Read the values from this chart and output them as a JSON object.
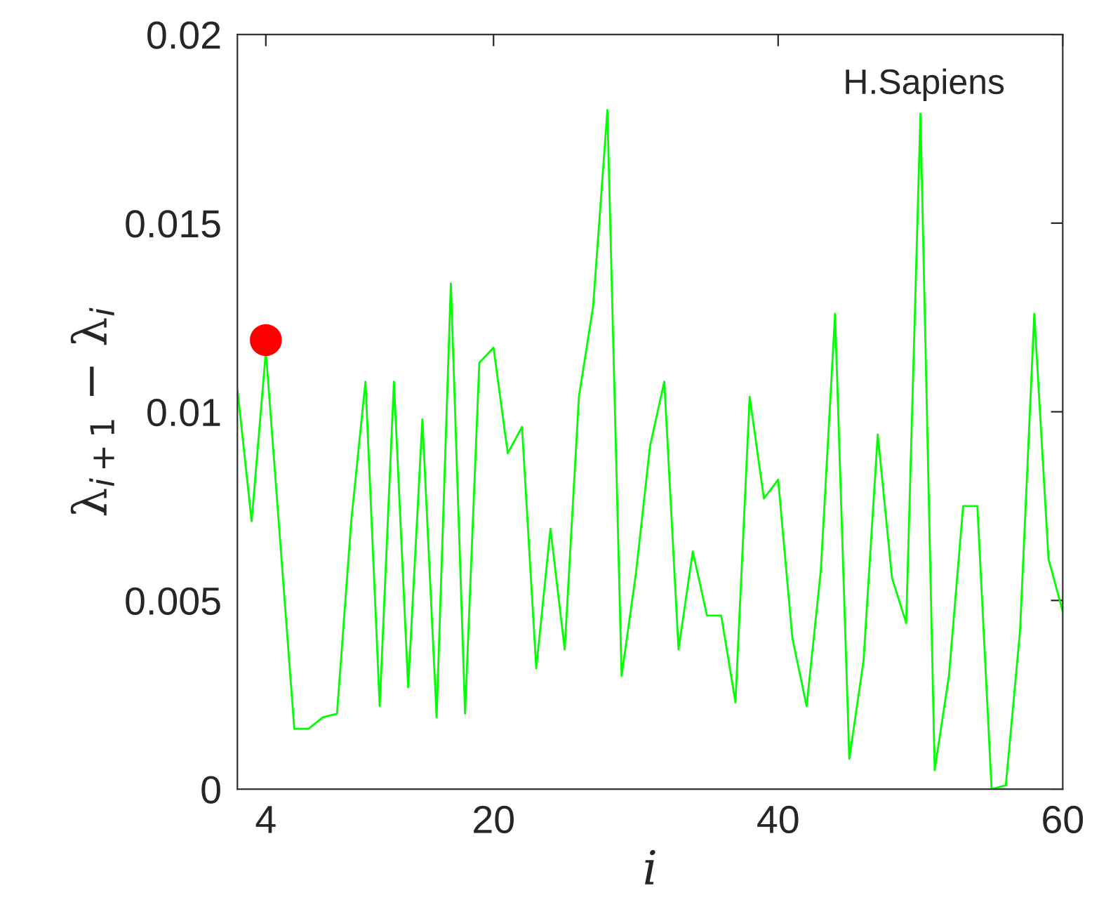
{
  "chart_data": {
    "type": "line",
    "xlabel": "i",
    "ylabel": "λ$_{i+1}$ − λ$_{i}$",
    "annotations": [
      "H.Sapiens"
    ],
    "xlim": [
      2,
      60
    ],
    "ylim": [
      0,
      0.02
    ],
    "xticks": [
      4,
      20,
      40,
      60
    ],
    "yticks": [
      0,
      0.005,
      0.01,
      0.015,
      0.02
    ],
    "grid": false,
    "marker": "none",
    "line_style": "solid",
    "series": [
      {
        "color": "#00ff00",
        "x": [
          2,
          3,
          4,
          5,
          6,
          7,
          8,
          9,
          10,
          11,
          12,
          13,
          14,
          15,
          16,
          17,
          18,
          19,
          20,
          21,
          22,
          23,
          24,
          25,
          26,
          27,
          28,
          29,
          30,
          31,
          32,
          33,
          34,
          35,
          36,
          37,
          38,
          39,
          40,
          41,
          42,
          43,
          44,
          45,
          46,
          47,
          48,
          49,
          50,
          51,
          52,
          53,
          54,
          55,
          56,
          57,
          58,
          59,
          60
        ],
        "values": [
          0.0106,
          0.0071,
          0.0116,
          0.0066,
          0.0016,
          0.0016,
          0.0019,
          0.002,
          0.0071,
          0.0108,
          0.0022,
          0.0108,
          0.0027,
          0.0098,
          0.0019,
          0.0134,
          0.002,
          0.0113,
          0.0117,
          0.0089,
          0.0096,
          0.0032,
          0.0069,
          0.0037,
          0.0104,
          0.0128,
          0.018,
          0.003,
          0.0057,
          0.0091,
          0.0108,
          0.0037,
          0.0063,
          0.0046,
          0.0046,
          0.0023,
          0.0104,
          0.0077,
          0.0082,
          0.004,
          0.0022,
          0.0058,
          0.0126,
          0.0008,
          0.0034,
          0.0094,
          0.0056,
          0.0044,
          0.0179,
          0.0005,
          0.003,
          0.0075,
          0.0075,
          0,
          0.0001,
          0.0042,
          0.0126,
          0.0061,
          0.0047
        ]
      },
      {
        "type": "scatter",
        "color": "#ff0000",
        "marker": "circle",
        "x": [
          4
        ],
        "values": [
          0.0119
        ]
      }
    ]
  }
}
